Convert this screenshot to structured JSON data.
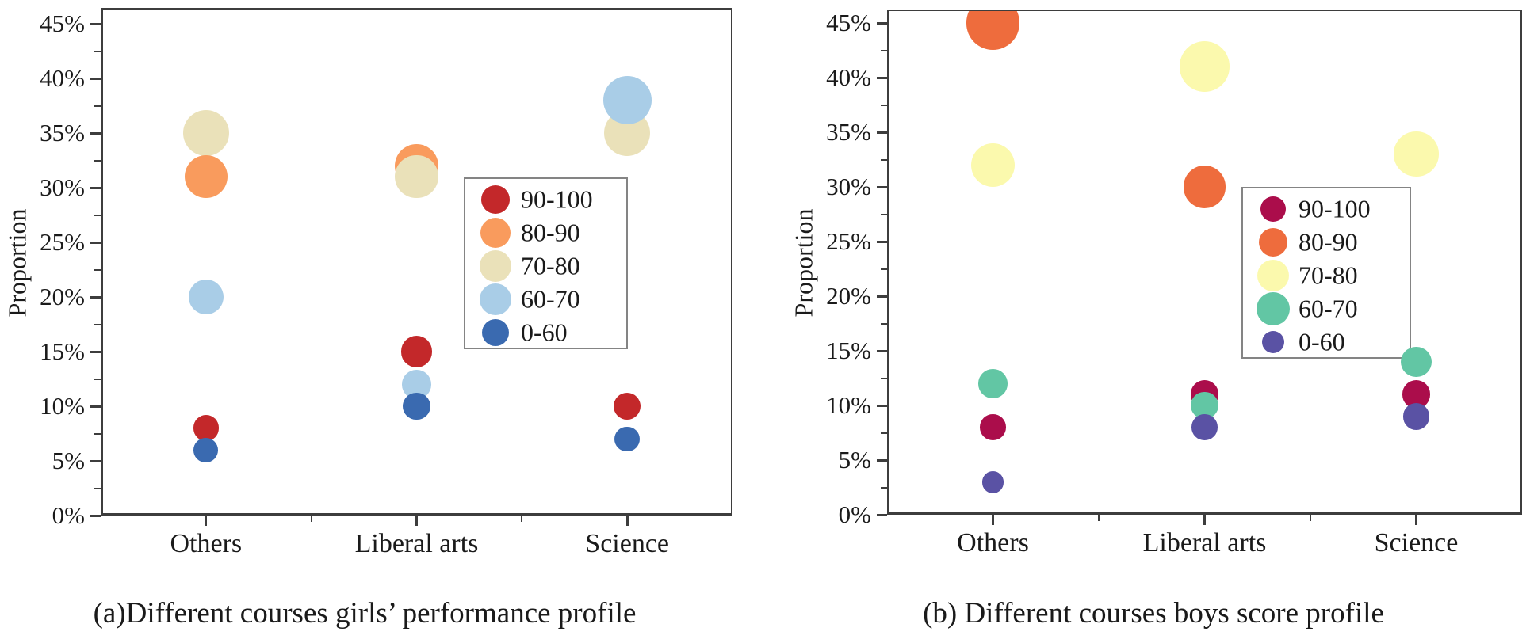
{
  "figure": {
    "background": "#ffffff",
    "text_color": "#1a1a1a",
    "axis_color": "#3d3d3d"
  },
  "chart_data": [
    {
      "type": "bubble",
      "panel": "a",
      "caption": "(a)Different courses girls’ performance profile",
      "ylabel": "Proportion",
      "xlabel": "",
      "ylim": [
        0,
        45
      ],
      "ytick_step_percent": 5,
      "grid": false,
      "ytick_percent_labels": [
        "0%",
        "5%",
        "10%",
        "15%",
        "20%",
        "25%",
        "30%",
        "35%",
        "40%",
        "45%"
      ],
      "categories": [
        "Others",
        "Liberal arts",
        "Science"
      ],
      "legend_position": "inside-center-right",
      "legend": {
        "entries": [
          {
            "label": "90-100",
            "color": "#c3282a"
          },
          {
            "label": "80-90",
            "color": "#f99b5d"
          },
          {
            "label": "70-80",
            "color": "#eae1b9"
          },
          {
            "label": "60-70",
            "color": "#a9cde7"
          },
          {
            "label": "0-60",
            "color": "#3a6ab0"
          }
        ]
      },
      "series": [
        {
          "name": "90-100",
          "values": [
            8,
            15,
            10
          ]
        },
        {
          "name": "80-90",
          "values": [
            31,
            32,
            null
          ]
        },
        {
          "name": "70-80",
          "values": [
            35,
            31,
            35
          ]
        },
        {
          "name": "60-70",
          "values": [
            20,
            12,
            38
          ]
        },
        {
          "name": "0-60",
          "values": [
            6,
            10,
            7
          ]
        }
      ],
      "points_draw_order": [
        {
          "category": "Others",
          "range": "70-80",
          "value": 35
        },
        {
          "category": "Others",
          "range": "80-90",
          "value": 31
        },
        {
          "category": "Others",
          "range": "60-70",
          "value": 20
        },
        {
          "category": "Others",
          "range": "90-100",
          "value": 8
        },
        {
          "category": "Others",
          "range": "0-60",
          "value": 6
        },
        {
          "category": "Liberal arts",
          "range": "80-90",
          "value": 32
        },
        {
          "category": "Liberal arts",
          "range": "70-80",
          "value": 31
        },
        {
          "category": "Liberal arts",
          "range": "90-100",
          "value": 15
        },
        {
          "category": "Liberal arts",
          "range": "60-70",
          "value": 12
        },
        {
          "category": "Liberal arts",
          "range": "0-60",
          "value": 10
        },
        {
          "category": "Science",
          "range": "70-80",
          "value": 35
        },
        {
          "category": "Science",
          "range": "60-70",
          "value": 38
        },
        {
          "category": "Science",
          "range": "90-100",
          "value": 10
        },
        {
          "category": "Science",
          "range": "0-60",
          "value": 7
        }
      ]
    },
    {
      "type": "bubble",
      "panel": "b",
      "caption": "(b) Different courses boys score profile",
      "ylabel": "Proportion",
      "xlabel": "",
      "ylim": [
        0,
        45
      ],
      "ytick_step_percent": 5,
      "grid": false,
      "ytick_percent_labels": [
        "0%",
        "5%",
        "10%",
        "15%",
        "20%",
        "25%",
        "30%",
        "35%",
        "40%",
        "45%"
      ],
      "categories": [
        "Others",
        "Liberal arts",
        "Science"
      ],
      "legend_position": "inside-center-right",
      "legend": {
        "entries": [
          {
            "label": "90-100",
            "color": "#ab0d4b"
          },
          {
            "label": "80-90",
            "color": "#ee6c3d"
          },
          {
            "label": "70-80",
            "color": "#fbf9ad"
          },
          {
            "label": "60-70",
            "color": "#62c6a4"
          },
          {
            "label": "0-60",
            "color": "#5a52a4"
          }
        ]
      },
      "series": [
        {
          "name": "90-100",
          "values": [
            8,
            11,
            11
          ]
        },
        {
          "name": "80-90",
          "values": [
            45,
            30,
            null
          ]
        },
        {
          "name": "70-80",
          "values": [
            32,
            41,
            33
          ]
        },
        {
          "name": "60-70",
          "values": [
            12,
            10,
            14
          ]
        },
        {
          "name": "0-60",
          "values": [
            3,
            8,
            9
          ]
        }
      ],
      "points_draw_order": [
        {
          "category": "Others",
          "range": "80-90",
          "value": 45
        },
        {
          "category": "Others",
          "range": "70-80",
          "value": 32
        },
        {
          "category": "Others",
          "range": "60-70",
          "value": 12
        },
        {
          "category": "Others",
          "range": "90-100",
          "value": 8
        },
        {
          "category": "Others",
          "range": "0-60",
          "value": 3
        },
        {
          "category": "Liberal arts",
          "range": "70-80",
          "value": 41
        },
        {
          "category": "Liberal arts",
          "range": "80-90",
          "value": 30
        },
        {
          "category": "Liberal arts",
          "range": "90-100",
          "value": 11
        },
        {
          "category": "Liberal arts",
          "range": "60-70",
          "value": 10
        },
        {
          "category": "Liberal arts",
          "range": "0-60",
          "value": 8
        },
        {
          "category": "Science",
          "range": "70-80",
          "value": 33
        },
        {
          "category": "Science",
          "range": "60-70",
          "value": 14
        },
        {
          "category": "Science",
          "range": "90-100",
          "value": 11
        },
        {
          "category": "Science",
          "range": "0-60",
          "value": 9
        }
      ]
    }
  ]
}
